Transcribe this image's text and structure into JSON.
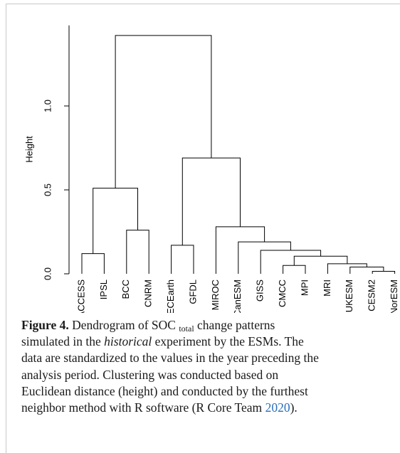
{
  "chart_data": {
    "type": "dendrogram",
    "y_label": "Height",
    "ylim": [
      0,
      1.48
    ],
    "yticks": [
      {
        "value": 0,
        "label": "0.0"
      },
      {
        "value": 0.5,
        "label": "0.5"
      },
      {
        "value": 1,
        "label": "1.0"
      }
    ],
    "color": "#000000",
    "tree": {
      "height": 1.42,
      "children": [
        {
          "height": 0.51,
          "children": [
            {
              "height": 0.12,
              "children": [
                "ACCESS",
                "IPSL"
              ]
            },
            {
              "height": 0.26,
              "children": [
                "BCC",
                "CNRM"
              ]
            }
          ]
        },
        {
          "height": 0.69,
          "children": [
            {
              "height": 0.17,
              "children": [
                "ECEarth",
                "GFDL"
              ]
            },
            {
              "height": 0.28,
              "children": [
                "MIROC",
                {
                  "height": 0.19,
                  "children": [
                    "CanESM",
                    {
                      "height": 0.14,
                      "children": [
                        "GISS",
                        {
                          "height": 0.105,
                          "children": [
                            {
                              "height": 0.05,
                              "children": [
                                "CMCC",
                                "MPI"
                              ]
                            },
                            {
                              "height": 0.06,
                              "children": [
                                "MRI",
                                {
                                  "height": 0.04,
                                  "children": [
                                    "UKESM",
                                    {
                                      "height": 0.015,
                                      "children": [
                                        "CESM2",
                                        "NorESM"
                                      ]
                                    }
                                  ]
                                }
                              ]
                            }
                          ]
                        }
                      ]
                    }
                  ]
                }
              ]
            }
          ]
        }
      ]
    }
  },
  "caption": {
    "label": "Figure 4.",
    "text": [
      " Dendrogram of SOC ",
      "total",
      " change patterns",
      "simulated in the ",
      "historical",
      " experiment by the ESMs. The",
      "data are standardized to the values in the year preceding the",
      "analysis period. Clustering was conducted based on",
      "Euclidean distance (height) and conducted by the furthest",
      "neighbor method with R software (R Core Team ",
      "2020",
      ")."
    ]
  }
}
